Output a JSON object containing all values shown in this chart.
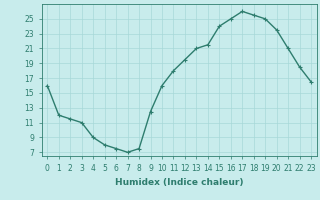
{
  "x": [
    0,
    1,
    2,
    3,
    4,
    5,
    6,
    7,
    8,
    9,
    10,
    11,
    12,
    13,
    14,
    15,
    16,
    17,
    18,
    19,
    20,
    21,
    22,
    23
  ],
  "y": [
    16,
    12,
    11.5,
    11,
    9,
    8,
    7.5,
    7,
    7.5,
    12.5,
    16,
    18,
    19.5,
    21,
    21.5,
    24,
    25,
    26,
    25.5,
    25,
    23.5,
    21,
    18.5,
    16.5
  ],
  "line_color": "#2e7d6e",
  "marker": "+",
  "bg_color": "#c8ecec",
  "grid_color": "#a8d8d8",
  "xlabel": "Humidex (Indice chaleur)",
  "ylim": [
    6.5,
    27
  ],
  "xlim": [
    -0.5,
    23.5
  ],
  "yticks": [
    7,
    9,
    11,
    13,
    15,
    17,
    19,
    21,
    23,
    25
  ],
  "xticks": [
    0,
    1,
    2,
    3,
    4,
    5,
    6,
    7,
    8,
    9,
    10,
    11,
    12,
    13,
    14,
    15,
    16,
    17,
    18,
    19,
    20,
    21,
    22,
    23
  ],
  "tick_fontsize": 5.5,
  "xlabel_fontsize": 6.5,
  "line_width": 1.0,
  "marker_size": 3.5
}
